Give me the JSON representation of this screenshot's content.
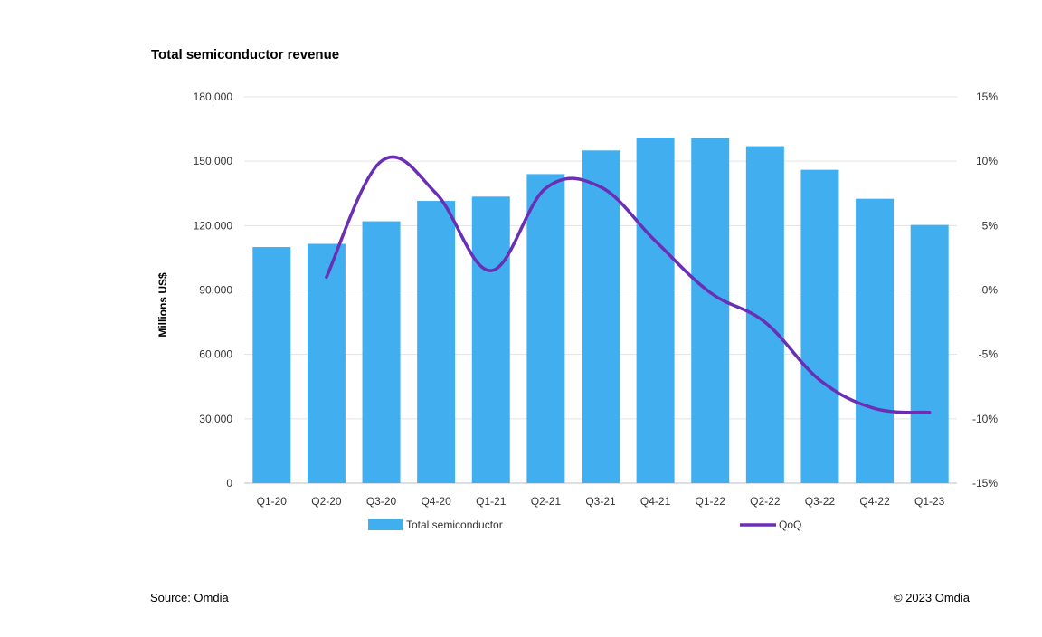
{
  "chart_data": {
    "type": "bar",
    "title": "Total semiconductor revenue",
    "ylabel": "Millions US$",
    "xlabel": "",
    "categories": [
      "Q1-20",
      "Q2-20",
      "Q3-20",
      "Q4-20",
      "Q1-21",
      "Q2-21",
      "Q3-21",
      "Q4-21",
      "Q1-22",
      "Q2-22",
      "Q3-22",
      "Q4-22",
      "Q1-23"
    ],
    "series": [
      {
        "name": "Total semiconductor",
        "type": "bar",
        "axis": "left",
        "color": "#41aef0",
        "values": [
          110000,
          111500,
          122000,
          131500,
          133500,
          144000,
          155000,
          161000,
          160800,
          157000,
          146000,
          132500,
          120300
        ]
      },
      {
        "name": "QoQ",
        "type": "line",
        "axis": "right",
        "color": "#6a2fb4",
        "values": [
          null,
          1.0,
          10.0,
          7.5,
          1.5,
          7.9,
          8.0,
          3.8,
          -0.2,
          -2.5,
          -7.0,
          -9.2,
          -9.5
        ]
      }
    ],
    "ylim": [
      0,
      180000
    ],
    "y_ticks": [
      "180,000",
      "150,000",
      "120,000",
      "90,000",
      "60,000",
      "30,000",
      "0"
    ],
    "y_tick_values": [
      180000,
      150000,
      120000,
      90000,
      60000,
      30000,
      0
    ],
    "y2lim": [
      -15,
      15
    ],
    "y2_ticks": [
      "15%",
      "10%",
      "5%",
      "0%",
      "-5%",
      "-10%",
      "-15%"
    ],
    "y2_tick_values": [
      15,
      10,
      5,
      0,
      -5,
      -10,
      -15
    ],
    "grid": true,
    "legend": "bottom"
  },
  "footer": {
    "source": "Source: Omdia",
    "copyright": "© 2023 Omdia"
  }
}
